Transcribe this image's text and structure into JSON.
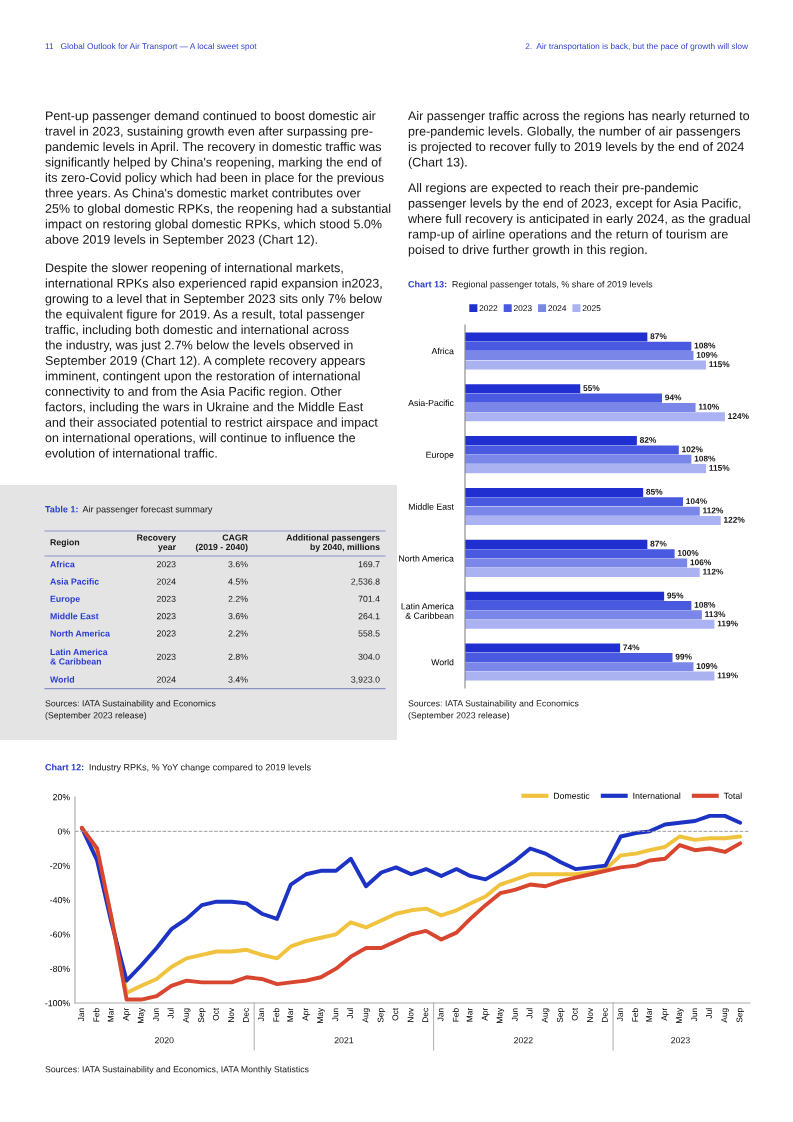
{
  "chart_data": [
    {
      "type": "other",
      "annotations": [
        "11   Global Outlook for Air Transport — A local sweet spot",
        "2.  Air transportation is back, but the pace of growth will slow",
        "Pent-up passenger demand continued to boost domestic air\ntravel in 2023, sustaining growth even after surpassing pre-\npandemic levels in April. The recovery in domestic traffic was\nsignificantly helped by China's reopening, marking the end of\nits zero-Covid policy which had been in place for the previous\nthree years. As China's domestic market contributes over\n25% to global domestic RPKs, the reopening had a substantial\nimpact on restoring global domestic RPKs, which stood 5.0%\nabove 2019 levels in September 2023 (Chart 12).",
        "Despite the slower reopening of international markets,\ninternational RPKs also experienced rapid expansion in2023,\ngrowing to a level that in September 2023 sits only 7% below\nthe equivalent figure for 2019. As a result, total passenger\ntraffic, including both domestic and international across\nthe industry, was just 2.7% below the levels observed in\nSeptember 2019 (Chart 12). A complete recovery appears\nimminent, contingent upon the restoration of international\nconnectivity to and from the Asia Pacific region. Other\nfactors, including the wars in Ukraine and the Middle East\nand their associated potential to restrict airspace and impact\non international operations, will continue to influence the\nevolution of international traffic.",
        "Air passenger traffic across the regions has nearly returned to\npre-pandemic levels. Globally, the number of air passengers\nis projected to recover fully to 2019 levels by the end of 2024\n(Chart 13).",
        "All regions are expected to reach their pre-pandemic\npassenger levels by the end of 2023, except for Asia Pacific,\nwhere full recovery is anticipated in early 2024, as the gradual\nramp-up of airline operations and the return of tourism are\npoised to drive further growth in this region."
      ]
    },
    {
      "type": "bar",
      "orientation": "horizontal",
      "title": "Chart 13: Regional passenger totals, % share of 2019 levels",
      "categories": [
        "Africa",
        "Asia-Pacific",
        "Europe",
        "Middle East",
        "North America",
        "Latin America\n& Caribbean",
        "World"
      ],
      "series": [
        {
          "name": "2022",
          "color": "#1f2fd0",
          "values": [
            87,
            55,
            82,
            85,
            87,
            95,
            74
          ],
          "value_labels": [
            "87%",
            "55%",
            "82%",
            "85%",
            "87%",
            "95%",
            "74%"
          ]
        },
        {
          "name": "2023",
          "color": "#4a5ae0",
          "values": [
            108,
            94,
            102,
            104,
            100,
            108,
            99
          ],
          "value_labels": [
            "108%",
            "94%",
            "102%",
            "104%",
            "100%",
            "108%",
            "99%"
          ]
        },
        {
          "name": "2024",
          "color": "#7a86e8",
          "values": [
            109,
            110,
            108,
            112,
            106,
            113,
            109
          ],
          "value_labels": [
            "109%",
            "110%",
            "108%",
            "112%",
            "106%",
            "113%",
            "109%"
          ]
        },
        {
          "name": "2025",
          "color": "#aab2f2",
          "values": [
            115,
            124,
            115,
            122,
            112,
            119,
            119
          ],
          "value_labels": [
            "115%",
            "124%",
            "115%",
            "122%",
            "112%",
            "119%",
            "119%"
          ]
        }
      ],
      "legend": "top left",
      "annotations": [
        "Sources: IATA Sustainability and Economics\n(September 2023 release)"
      ]
    },
    {
      "type": "other",
      "title": "Table 1: Air passenger forecast summary",
      "categories": [
        "Region",
        "Recovery\nyear",
        "CAGR\n(2019 - 2040)",
        "Additional passengers\nby 2040, millions"
      ],
      "y_categories": [
        "Africa",
        "Asia Pacific",
        "Europe",
        "Middle East",
        "North America",
        "Latin America\n& Caribbean",
        "World"
      ],
      "cell_labels": [
        [
          "2023",
          "3.6%",
          "169.7"
        ],
        [
          "2024",
          "4.5%",
          "2,536.8"
        ],
        [
          "2023",
          "2.2%",
          "701.4"
        ],
        [
          "2023",
          "3.6%",
          "264.1"
        ],
        [
          "2023",
          "2.2%",
          "558.5"
        ],
        [
          "2023",
          "2.8%",
          "304.0"
        ],
        [
          "2024",
          "3.4%",
          "3,923.0"
        ]
      ],
      "annotations": [
        "Sources: IATA Sustainability and Economics\n(September 2023 release)"
      ]
    },
    {
      "type": "line",
      "title": "Chart 12: Industry RPKs, % YoY change compared to 2019 levels",
      "x": [
        "2020-01",
        "2020-02",
        "2020-03",
        "2020-04",
        "2020-05",
        "2020-06",
        "2020-07",
        "2020-08",
        "2020-09",
        "2020-10",
        "2020-11",
        "2020-12",
        "2021-01",
        "2021-02",
        "2021-03",
        "2021-04",
        "2021-05",
        "2021-06",
        "2021-07",
        "2021-08",
        "2021-09",
        "2021-10",
        "2021-11",
        "2021-12",
        "2022-01",
        "2022-02",
        "2022-03",
        "2022-04",
        "2022-05",
        "2022-06",
        "2022-07",
        "2022-08",
        "2022-09",
        "2022-10",
        "2022-11",
        "2022-12",
        "2023-01",
        "2023-02",
        "2023-03",
        "2023-04",
        "2023-05",
        "2023-06",
        "2023-07",
        "2023-08",
        "2023-09"
      ],
      "series": [
        {
          "name": "Domestic",
          "color": "#f0c23e",
          "values": [
            2,
            -13,
            -50,
            -94,
            -90,
            -86,
            -79,
            -74,
            -72,
            -70,
            -70,
            -69,
            -72,
            -74,
            -67,
            -64,
            -62,
            -60,
            -53,
            -56,
            -52,
            -48,
            -46,
            -45,
            -49,
            -46,
            -42,
            -38,
            -31,
            -28,
            -25,
            -25,
            -25,
            -25,
            -24,
            -22,
            -14,
            -13,
            -11,
            -9,
            -3,
            -5,
            -4,
            -4,
            -3
          ]
        },
        {
          "name": "International",
          "color": "#1d33c4",
          "values": [
            2,
            -17,
            -53,
            -87,
            -78,
            -68,
            -57,
            -51,
            -43,
            -41,
            -41,
            -42,
            -48,
            -51,
            -31,
            -25,
            -23,
            -23,
            -16,
            -32,
            -24,
            -21,
            -25,
            -22,
            -26,
            -22,
            -26,
            -28,
            -23,
            -17,
            -10,
            -13,
            -18,
            -22,
            -21,
            -20,
            -3,
            -1,
            0,
            4,
            5,
            6,
            9,
            9,
            5
          ]
        },
        {
          "name": "Total",
          "color": "#d8462f",
          "values": [
            2,
            -10,
            -50,
            -98,
            -98,
            -96,
            -90,
            -87,
            -88,
            -88,
            -88,
            -85,
            -86,
            -89,
            -88,
            -87,
            -85,
            -80,
            -73,
            -68,
            -68,
            -64,
            -60,
            -58,
            -63,
            -59,
            -51,
            -43,
            -36,
            -34,
            -31,
            -32,
            -29,
            -27,
            -25,
            -23,
            -21,
            -20,
            -17,
            -16,
            -8,
            -11,
            -10,
            -12,
            -7
          ]
        }
      ],
      "xlim": [
        "2019-12-18",
        "2023-09-21"
      ],
      "xticks": [
        {
          "value": "2020-01",
          "label": "Jan"
        },
        {
          "value": "2020-02",
          "label": "Feb"
        },
        {
          "value": "2020-03",
          "label": "Mar"
        },
        {
          "value": "2020-04",
          "label": "Apr"
        },
        {
          "value": "2020-05",
          "label": "May"
        },
        {
          "value": "2020-06",
          "label": "Jun"
        },
        {
          "value": "2020-07",
          "label": "Jul"
        },
        {
          "value": "2020-08",
          "label": "Aug"
        },
        {
          "value": "2020-09",
          "label": "Sep"
        },
        {
          "value": "2020-10",
          "label": "Oct"
        },
        {
          "value": "2020-11",
          "label": "Nov"
        },
        {
          "value": "2020-12",
          "label": "Dec"
        },
        {
          "value": "2021-01",
          "label": "Jan"
        },
        {
          "value": "2021-02",
          "label": "Feb"
        },
        {
          "value": "2021-03",
          "label": "Mar"
        },
        {
          "value": "2021-04",
          "label": "Apr"
        },
        {
          "value": "2021-05",
          "label": "May"
        },
        {
          "value": "2021-06",
          "label": "Jun"
        },
        {
          "value": "2021-07",
          "label": "Jul"
        },
        {
          "value": "2021-08",
          "label": "Aug"
        },
        {
          "value": "2021-09",
          "label": "Sep"
        },
        {
          "value": "2021-10",
          "label": "Oct"
        },
        {
          "value": "2021-11",
          "label": "Nov"
        },
        {
          "value": "2021-12",
          "label": "Dec"
        },
        {
          "value": "2022-01",
          "label": "Jan"
        },
        {
          "value": "2022-02",
          "label": "Feb"
        },
        {
          "value": "2022-03",
          "label": "Mar"
        },
        {
          "value": "2022-04",
          "label": "Apr"
        },
        {
          "value": "2022-05",
          "label": "May"
        },
        {
          "value": "2022-06",
          "label": "Jun"
        },
        {
          "value": "2022-07",
          "label": "Jul"
        },
        {
          "value": "2022-08",
          "label": "Aug"
        },
        {
          "value": "2022-09",
          "label": "Sep"
        },
        {
          "value": "2022-10",
          "label": "Oct"
        },
        {
          "value": "2022-11",
          "label": "Nov"
        },
        {
          "value": "2022-12",
          "label": "Dec"
        },
        {
          "value": "2023-01",
          "label": "Jan"
        },
        {
          "value": "2023-02",
          "label": "Feb"
        },
        {
          "value": "2023-03",
          "label": "Mar"
        },
        {
          "value": "2023-04",
          "label": "Apr"
        },
        {
          "value": "2023-05",
          "label": "May"
        },
        {
          "value": "2023-06",
          "label": "Jun"
        },
        {
          "value": "2023-07",
          "label": "Jul"
        },
        {
          "value": "2023-08",
          "label": "Aug"
        },
        {
          "value": "2023-09",
          "label": "Sep"
        }
      ],
      "ylim": [
        -100,
        20
      ],
      "yticks": [
        {
          "value": 20,
          "label": "20%"
        },
        {
          "value": 0,
          "label": "0%"
        },
        {
          "value": -20,
          "label": "-20%"
        },
        {
          "value": -40,
          "label": "-40%"
        },
        {
          "value": -60,
          "label": "-60%"
        },
        {
          "value": -80,
          "label": "-80%"
        },
        {
          "value": -100,
          "label": "-100%"
        }
      ],
      "ref_lines": [
        {
          "axis": "y",
          "value": 0,
          "label": null,
          "color": "#999999",
          "line_style": "dashed"
        }
      ],
      "legend": "top right",
      "marker": "none",
      "line_style": "solid",
      "annotations": [
        "2020",
        "2021",
        "2022",
        "2023",
        "Sources: IATA Sustainability and Economics, IATA Monthly Statistics"
      ]
    }
  ]
}
